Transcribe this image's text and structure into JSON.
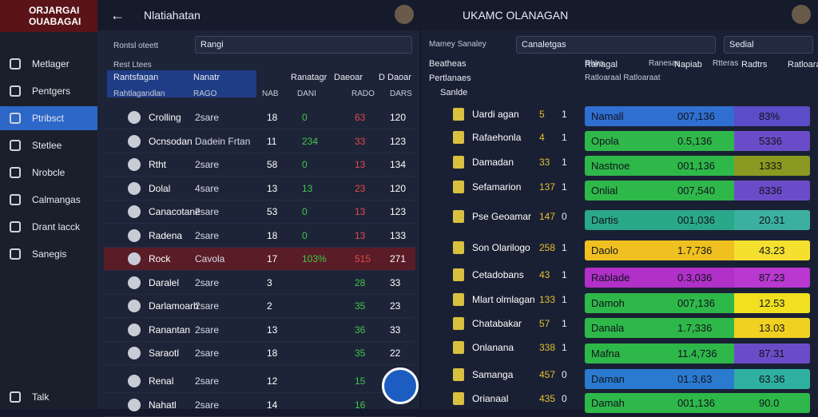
{
  "sidebar": {
    "logo": [
      "ORJARGAI",
      "OUABAGAI"
    ],
    "nav": [
      "Metlager",
      "Pentgers",
      "Ptribsct",
      "Stetlee",
      "Nrobcle",
      "Calmangas",
      "Drant lacck",
      "Sanegis"
    ],
    "active": 2,
    "footer": "Talk"
  },
  "left_panel": {
    "title": "Nlatiahatan",
    "search": "Rangi",
    "filter_label": "Rontsl oteett",
    "section_label": "Rest Ltees",
    "header": [
      "Rantsfagan",
      "Nanatr",
      "Ranatagr",
      "Daeoar",
      "D Daoar"
    ],
    "subheader": [
      "Rahtlagandlan",
      "RAGO",
      "NAB",
      "DANI",
      "RADO",
      "DARS"
    ],
    "rows": [
      [
        "Crolling",
        "2sare",
        "18",
        "0",
        "63",
        "120"
      ],
      [
        "Ocnsodan",
        "Dadein Frtan",
        "11",
        "234",
        "33",
        "123"
      ],
      [
        "Rtht",
        "2sare",
        "58",
        "0",
        "13",
        "134"
      ],
      [
        "Dolal",
        "4sare",
        "13",
        "13",
        "23",
        "120"
      ],
      [
        "Canacotane",
        "2sare",
        "53",
        "0",
        "13",
        "123"
      ],
      [
        "Radena",
        "2sare",
        "18",
        "0",
        "13",
        "133"
      ],
      [
        "Rock",
        "Cavola",
        "17",
        "103%",
        "515",
        "271"
      ],
      [
        "Daralel",
        "2sare",
        "3",
        "",
        "28",
        "33"
      ],
      [
        "Darlamoarh",
        "2sare",
        "2",
        "",
        "35",
        "23"
      ],
      [
        "Ranantan",
        "2sare",
        "13",
        "",
        "36",
        "33"
      ],
      [
        "Saraotl",
        "2sare",
        "18",
        "",
        "35",
        "22"
      ],
      [
        "Renal",
        "2sare",
        "12",
        "",
        "15",
        ""
      ],
      [
        "Nahatl",
        "2sare",
        "14",
        "",
        "16",
        ""
      ]
    ],
    "highlight_row": 6
  },
  "right_panel": {
    "title": "UKAMC OLANAGAN",
    "search": "Sedial",
    "filter1": "Mamey",
    "filter1b": "Sanaley",
    "filter2": "Canaletgas",
    "filters": [
      "Rhtrs",
      "Ranesas",
      "Rtteras"
    ],
    "list_header": [
      "Beatheas",
      "Pertlanaes",
      "Sanlde"
    ],
    "list": [
      [
        "Uardi agan",
        "5",
        "1"
      ],
      [
        "Rafaehonla",
        "4",
        "1"
      ],
      [
        "Damadan",
        "33",
        "1"
      ],
      [
        "Sefamarion",
        "137",
        "1"
      ],
      [
        "Pse Geoamar",
        "147",
        "0"
      ],
      [
        "Son Olarilogo",
        "258",
        "1"
      ],
      [
        "Cetadobans",
        "43",
        "1"
      ],
      [
        "Mlart olmlagan",
        "133",
        "1"
      ],
      [
        "Chatabakar",
        "57",
        "1"
      ],
      [
        "Onlanana",
        "338",
        "1"
      ],
      [
        "Samanga",
        "457",
        "0"
      ],
      [
        "Orianaal",
        "435",
        "0"
      ]
    ],
    "bars_header": [
      "Ranagal",
      "Napiab",
      "Radtrs",
      "Ratloaraat"
    ],
    "bars_subheader": "Ratloaraal Ratloaraat",
    "bars": [
      {
        "label": "Namall",
        "value": "007,136",
        "right": "83%",
        "color": "#2f6fd0",
        "color2": "#5b4cc8"
      },
      {
        "label": "Opola",
        "value": "0.5,136",
        "right": "5336",
        "color": "#2fb84a",
        "color2": "#6b4cc8"
      },
      {
        "label": "Nastnoe",
        "value": "001,136",
        "right": "1333",
        "color": "#2fb84a",
        "color2": "#8a9a20"
      },
      {
        "label": "Onlial",
        "value": "007,540",
        "right": "8336",
        "color": "#2fb84a",
        "color2": "#6b4cc8"
      },
      {
        "label": "Dartis",
        "value": "001,036",
        "right": "20.31",
        "color": "#2aa88a",
        "color2": "#3cb0a0"
      },
      {
        "label": "Daolo",
        "value": "1.7,736",
        "right": "43.23",
        "color": "#f0c020",
        "color2": "#f5e030"
      },
      {
        "label": "Rablade",
        "value": "0.3,036",
        "right": "87.23",
        "color": "#b030c8",
        "color2": "#b838d0"
      },
      {
        "label": "Damoh",
        "value": "007,136",
        "right": "12.53",
        "color": "#2fb84a",
        "color2": "#f0e020"
      },
      {
        "label": "Danala",
        "value": "1.7,336",
        "right": "13.03",
        "color": "#2fb84a",
        "color2": "#f0d020"
      },
      {
        "label": "Mafna",
        "value": "11.4,736",
        "right": "87.31",
        "color": "#2fb84a",
        "color2": "#6b4cc8"
      },
      {
        "label": "Daman",
        "value": "01.3,63",
        "right": "63.36",
        "color": "#2a7ad0",
        "color2": "#30b0a0"
      },
      {
        "label": "Damah",
        "value": "001,136",
        "right": "90.0",
        "color": "#2fb84a",
        "color2": "#2fb84a"
      }
    ]
  }
}
